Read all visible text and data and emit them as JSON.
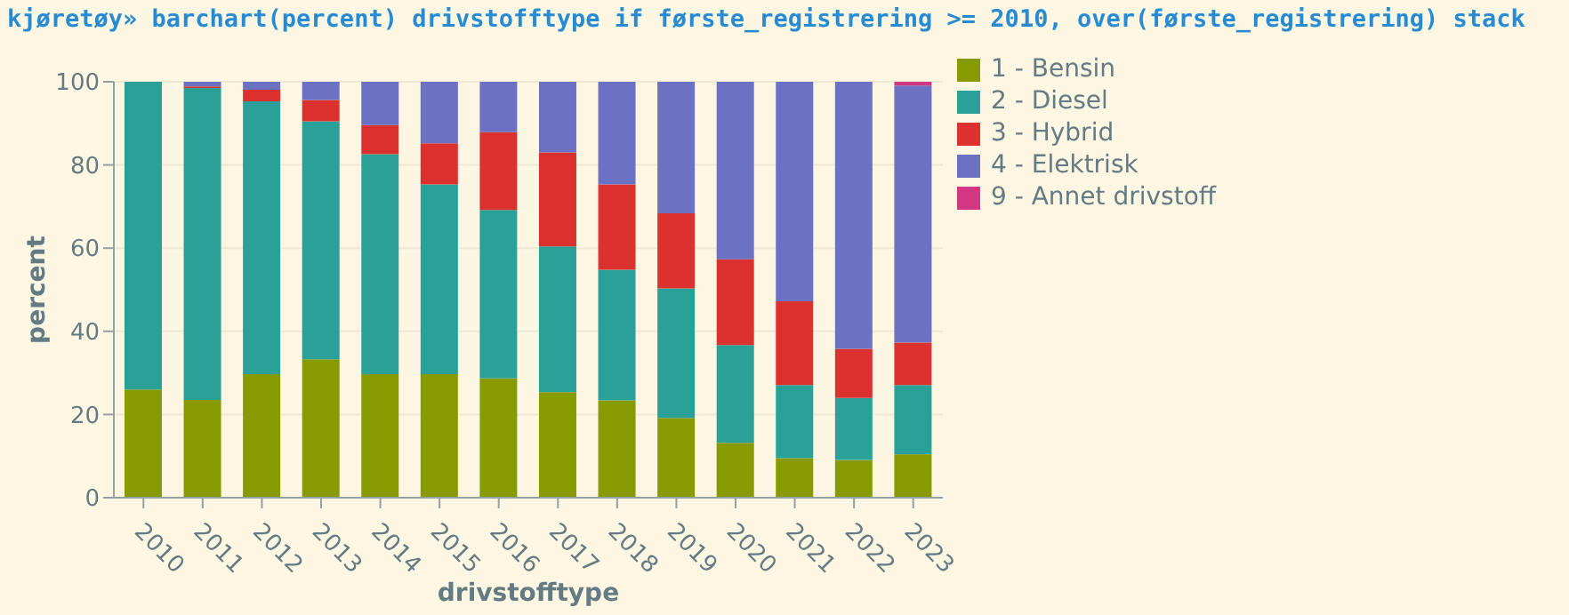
{
  "chart_data": {
    "type": "bar",
    "title": "kjøretøy» barchart(percent) drivstofftype if første_registrering >= 2010, over(første_registrering) stack",
    "xlabel": "drivstofftype",
    "ylabel": "percent",
    "stacked": true,
    "categories": [
      "2010",
      "2011",
      "2012",
      "2013",
      "2014",
      "2015",
      "2016",
      "2017",
      "2018",
      "2019",
      "2020",
      "2021",
      "2022",
      "2023"
    ],
    "series": [
      {
        "name": "1 - Bensin",
        "color": "#879a00",
        "values": [
          26,
          23.5,
          29.7,
          33.3,
          29.7,
          29.7,
          28.7,
          25.4,
          23.4,
          19.2,
          13.2,
          9.5,
          9.1,
          10.4
        ]
      },
      {
        "name": "2 - Diesel",
        "color": "#2aa198",
        "values": [
          74,
          75,
          65.6,
          57.2,
          52.9,
          45.6,
          40.5,
          35,
          31.4,
          31.1,
          23.5,
          17.6,
          14.9,
          16.7
        ]
      },
      {
        "name": "3 - Hybrid",
        "color": "#dc322f",
        "values": [
          0,
          0.4,
          2.8,
          5.1,
          7,
          9.9,
          18.7,
          22.6,
          20.5,
          18.1,
          20.6,
          20.1,
          11.8,
          10.2
        ]
      },
      {
        "name": "4 - Elektrisk",
        "color": "#6c71c4",
        "values": [
          0,
          1.1,
          1.9,
          4.4,
          10.4,
          14.8,
          12.1,
          17,
          24.7,
          31.6,
          42.7,
          52.8,
          64.2,
          61.8
        ]
      },
      {
        "name": "9 - Annet drivstoff",
        "color": "#d33682",
        "values": [
          0,
          0,
          0,
          0,
          0,
          0,
          0,
          0,
          0,
          0,
          0,
          0,
          0,
          0.9
        ]
      }
    ],
    "ylim": [
      0,
      100
    ],
    "yticks": [
      0,
      20,
      40,
      60,
      80,
      100
    ],
    "grid": "y",
    "legend": "top right"
  }
}
